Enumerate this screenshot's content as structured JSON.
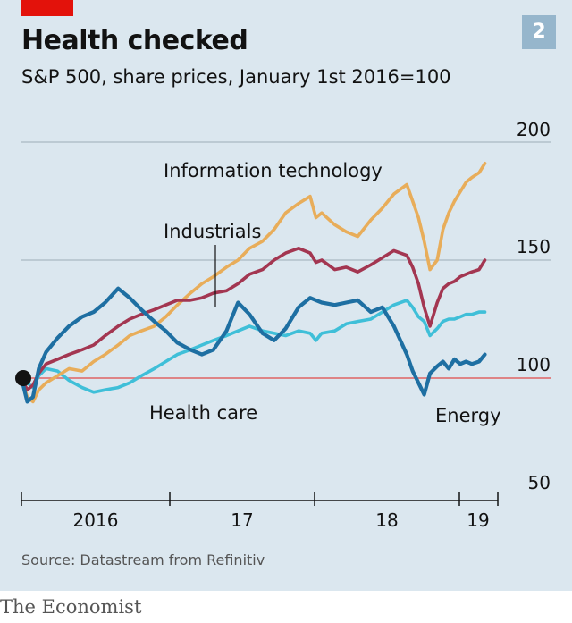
{
  "header": {
    "title": "Health checked",
    "subtitle": "S&P 500, share prices, January 1st 2016=100",
    "chart_number": "2"
  },
  "footer": {
    "source": "Source: Datastream from Refinitiv",
    "publisher": "The Economist"
  },
  "colors": {
    "panel": "#dbe7ef",
    "brand_red": "#e3120b",
    "grid": "#aab8c2",
    "baseline": "#e06363",
    "information_technology": "#e8ad5a",
    "industrials": "#a33651",
    "health_care": "#3fbfd8",
    "energy": "#1e6fa2"
  },
  "chart_data": {
    "type": "line",
    "title": "Health checked",
    "subtitle": "S&P 500, share prices, January 1st 2016=100",
    "y_ticks": [
      "200",
      "150",
      "100",
      "50"
    ],
    "x_ticks": [
      "2016",
      "17",
      "18",
      "19"
    ],
    "ylim": [
      50,
      200
    ],
    "xlim": [
      2016.0,
      2019.3
    ],
    "base_value": 100,
    "grid": true,
    "legend": "inline labels",
    "series": [
      {
        "name": "Information technology",
        "color": "#e8ad5a",
        "x": [
          2016.0,
          2016.04,
          2016.08,
          2016.12,
          2016.17,
          2016.25,
          2016.33,
          2016.42,
          2016.5,
          2016.58,
          2016.67,
          2016.75,
          2016.83,
          2016.92,
          2017.0,
          2017.08,
          2017.17,
          2017.25,
          2017.33,
          2017.42,
          2017.5,
          2017.58,
          2017.67,
          2017.75,
          2017.83,
          2017.92,
          2018.0,
          2018.04,
          2018.08,
          2018.17,
          2018.25,
          2018.33,
          2018.42,
          2018.5,
          2018.58,
          2018.67,
          2018.71,
          2018.75,
          2018.79,
          2018.83,
          2018.88,
          2018.92,
          2018.96,
          2019.0,
          2019.04,
          2019.08,
          2019.12,
          2019.17,
          2019.21
        ],
        "y": [
          100,
          92,
          90,
          95,
          98,
          101,
          104,
          103,
          107,
          110,
          114,
          118,
          120,
          122,
          126,
          131,
          136,
          140,
          143,
          147,
          150,
          155,
          158,
          163,
          170,
          174,
          177,
          168,
          170,
          165,
          162,
          160,
          167,
          172,
          178,
          182,
          175,
          168,
          158,
          146,
          150,
          163,
          170,
          175,
          179,
          183,
          185,
          187,
          191
        ]
      },
      {
        "name": "Industrials",
        "color": "#a33651",
        "x": [
          2016.0,
          2016.04,
          2016.08,
          2016.12,
          2016.17,
          2016.25,
          2016.33,
          2016.42,
          2016.5,
          2016.58,
          2016.67,
          2016.75,
          2016.83,
          2016.92,
          2017.0,
          2017.08,
          2017.17,
          2017.25,
          2017.33,
          2017.42,
          2017.5,
          2017.58,
          2017.67,
          2017.75,
          2017.83,
          2017.92,
          2018.0,
          2018.04,
          2018.08,
          2018.17,
          2018.25,
          2018.33,
          2018.42,
          2018.5,
          2018.58,
          2018.67,
          2018.71,
          2018.75,
          2018.79,
          2018.83,
          2018.88,
          2018.92,
          2018.96,
          2019.0,
          2019.04,
          2019.08,
          2019.12,
          2019.17,
          2019.21
        ],
        "y": [
          100,
          95,
          97,
          102,
          106,
          108,
          110,
          112,
          114,
          118,
          122,
          125,
          127,
          129,
          131,
          133,
          133,
          134,
          136,
          137,
          140,
          144,
          146,
          150,
          153,
          155,
          153,
          149,
          150,
          146,
          147,
          145,
          148,
          151,
          154,
          152,
          147,
          140,
          130,
          122,
          132,
          138,
          140,
          141,
          143,
          144,
          145,
          146,
          150
        ]
      },
      {
        "name": "Health care",
        "color": "#3fbfd8",
        "x": [
          2016.0,
          2016.04,
          2016.08,
          2016.12,
          2016.17,
          2016.25,
          2016.33,
          2016.42,
          2016.5,
          2016.58,
          2016.67,
          2016.75,
          2016.83,
          2016.92,
          2017.0,
          2017.08,
          2017.17,
          2017.25,
          2017.33,
          2017.42,
          2017.5,
          2017.58,
          2017.67,
          2017.75,
          2017.83,
          2017.92,
          2018.0,
          2018.04,
          2018.08,
          2018.17,
          2018.25,
          2018.33,
          2018.42,
          2018.5,
          2018.58,
          2018.67,
          2018.71,
          2018.75,
          2018.79,
          2018.83,
          2018.88,
          2018.92,
          2018.96,
          2019.0,
          2019.04,
          2019.08,
          2019.12,
          2019.17,
          2019.21
        ],
        "y": [
          100,
          98,
          96,
          101,
          104,
          103,
          99,
          96,
          94,
          95,
          96,
          98,
          101,
          104,
          107,
          110,
          112,
          114,
          116,
          118,
          120,
          122,
          120,
          119,
          118,
          120,
          119,
          116,
          119,
          120,
          123,
          124,
          125,
          128,
          131,
          133,
          130,
          126,
          124,
          118,
          121,
          124,
          125,
          125,
          126,
          127,
          127,
          128,
          128
        ]
      },
      {
        "name": "Energy",
        "color": "#1e6fa2",
        "x": [
          2016.0,
          2016.04,
          2016.08,
          2016.12,
          2016.17,
          2016.25,
          2016.33,
          2016.42,
          2016.5,
          2016.58,
          2016.67,
          2016.75,
          2016.83,
          2016.92,
          2017.0,
          2017.08,
          2017.17,
          2017.25,
          2017.33,
          2017.42,
          2017.5,
          2017.58,
          2017.67,
          2017.75,
          2017.83,
          2017.92,
          2018.0,
          2018.04,
          2018.08,
          2018.17,
          2018.25,
          2018.33,
          2018.42,
          2018.5,
          2018.58,
          2018.67,
          2018.71,
          2018.75,
          2018.79,
          2018.83,
          2018.88,
          2018.92,
          2018.96,
          2019.0,
          2019.04,
          2019.08,
          2019.12,
          2019.17,
          2019.21
        ],
        "y": [
          100,
          90,
          92,
          104,
          111,
          117,
          122,
          126,
          128,
          132,
          138,
          134,
          129,
          124,
          120,
          115,
          112,
          110,
          112,
          120,
          132,
          127,
          119,
          116,
          121,
          130,
          134,
          133,
          132,
          131,
          132,
          133,
          128,
          130,
          122,
          110,
          103,
          98,
          93,
          102,
          105,
          107,
          104,
          108,
          106,
          107,
          106,
          107,
          110
        ]
      }
    ],
    "annotations": [
      {
        "text": "Information technology",
        "series": "Information technology"
      },
      {
        "text": "Industrials",
        "series": "Industrials",
        "leader_x": 2017.28,
        "leader_y": 136
      },
      {
        "text": "Health care",
        "series": "Health care"
      },
      {
        "text": "Energy",
        "series": "Energy"
      }
    ]
  }
}
